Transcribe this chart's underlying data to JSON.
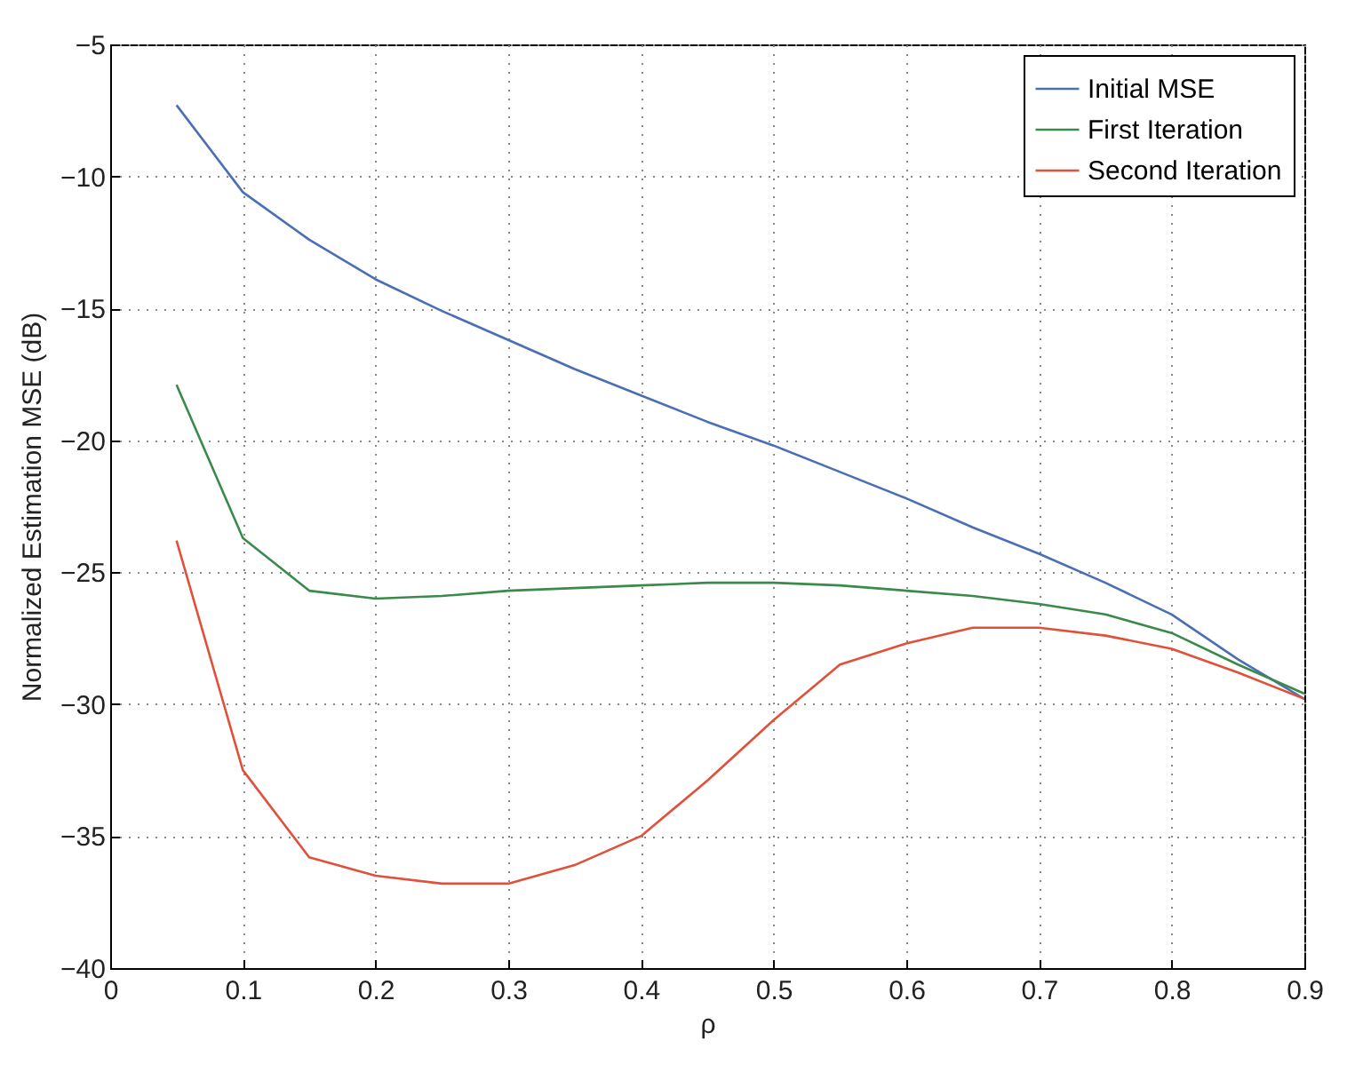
{
  "chart_data": {
    "type": "line",
    "xlabel": "ρ",
    "ylabel": "Normalized Estimation MSE (dB)",
    "x": [
      0.05,
      0.1,
      0.15,
      0.2,
      0.25,
      0.3,
      0.35,
      0.4,
      0.45,
      0.5,
      0.55,
      0.6,
      0.65,
      0.7,
      0.75,
      0.8,
      0.85,
      0.9
    ],
    "series": [
      {
        "name": "Initial MSE",
        "color": "#4a6fb5",
        "values": [
          -7.3,
          -10.6,
          -12.4,
          -13.9,
          -15.1,
          -16.2,
          -17.3,
          -18.3,
          -19.3,
          -20.2,
          -21.2,
          -22.2,
          -23.3,
          -24.3,
          -25.4,
          -26.6,
          -28.3,
          -29.8
        ]
      },
      {
        "name": "First Iteration",
        "color": "#3a8a4a",
        "values": [
          -17.9,
          -23.7,
          -25.7,
          -26.0,
          -25.9,
          -25.7,
          -25.6,
          -25.5,
          -25.4,
          -25.4,
          -25.5,
          -25.7,
          -25.9,
          -26.2,
          -26.6,
          -27.3,
          -28.5,
          -29.6
        ]
      },
      {
        "name": "Second Iteration",
        "color": "#e0503a",
        "values": [
          -23.8,
          -32.5,
          -35.8,
          -36.5,
          -36.8,
          -36.8,
          -36.1,
          -35.0,
          -32.9,
          -30.6,
          -28.5,
          -27.7,
          -27.1,
          -27.1,
          -27.4,
          -27.9,
          -28.8,
          -29.8
        ]
      }
    ],
    "xlim": [
      0,
      0.9
    ],
    "xticks": [
      0,
      0.1,
      0.2,
      0.3,
      0.4,
      0.5,
      0.6,
      0.7,
      0.8,
      0.9
    ],
    "ylim": [
      -40,
      -5
    ],
    "yticks": [
      -40,
      -35,
      -30,
      -25,
      -20,
      -15,
      -10,
      -5
    ],
    "grid": true,
    "legend": "top right",
    "line_style": "solid"
  }
}
